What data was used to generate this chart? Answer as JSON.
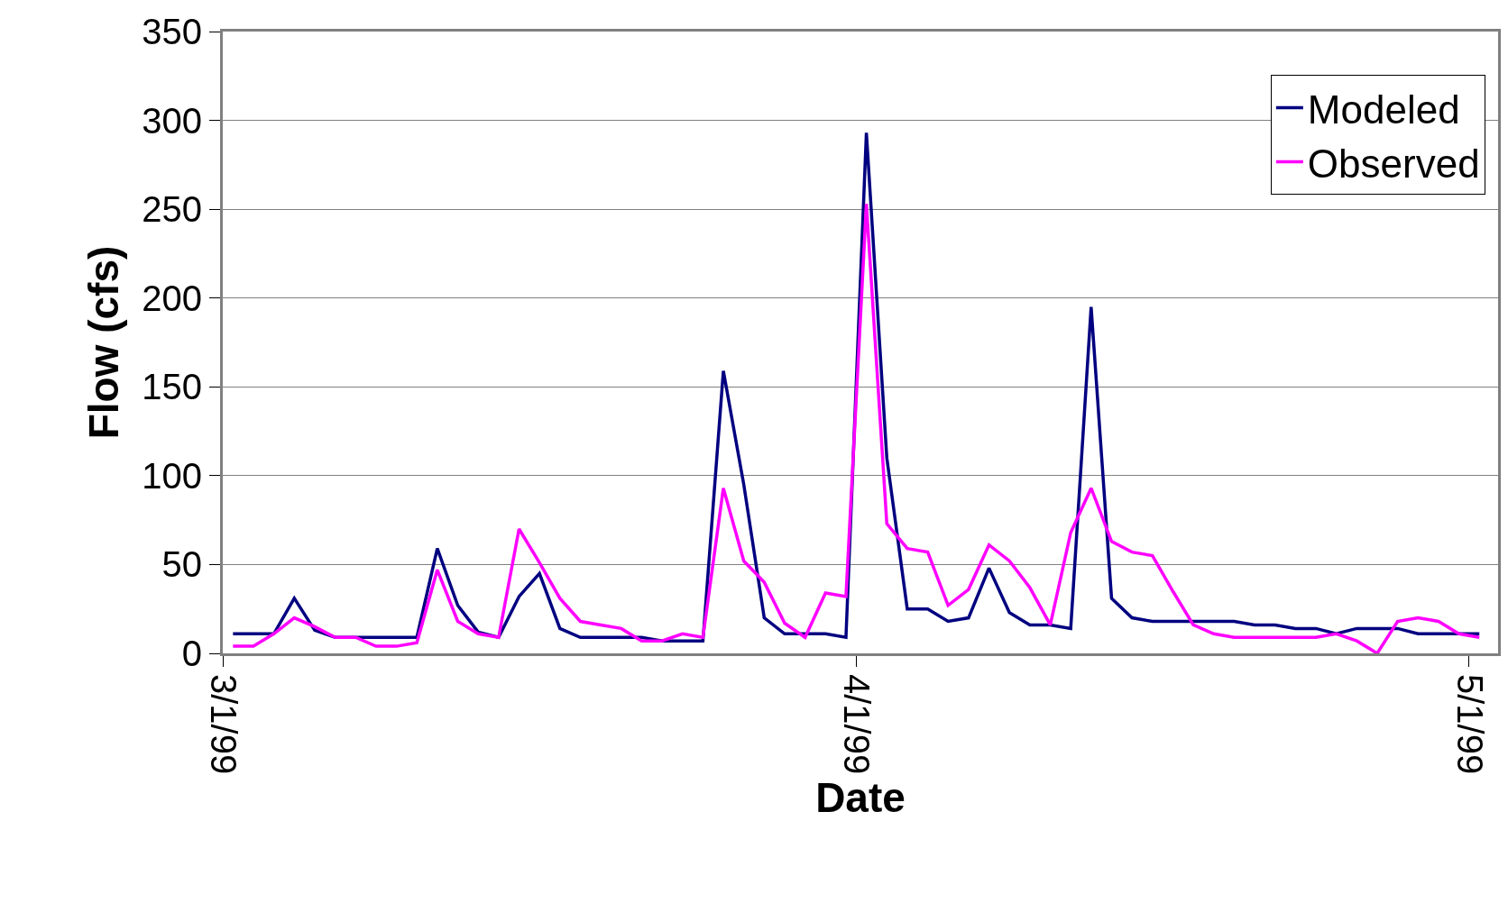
{
  "chart_data": {
    "type": "line",
    "xlabel": "Date",
    "ylabel": "Flow (cfs)",
    "x": [
      "1999-03-01T12:00",
      "1999-03-02T12:00",
      "1999-03-03T12:00",
      "1999-03-04T12:00",
      "1999-03-05T12:00",
      "1999-03-06T12:00",
      "1999-03-07T12:00",
      "1999-03-08T12:00",
      "1999-03-09T12:00",
      "1999-03-10T12:00",
      "1999-03-11T12:00",
      "1999-03-12T12:00",
      "1999-03-13T12:00",
      "1999-03-14T12:00",
      "1999-03-15T12:00",
      "1999-03-16T12:00",
      "1999-03-17T12:00",
      "1999-03-18T12:00",
      "1999-03-19T12:00",
      "1999-03-20T12:00",
      "1999-03-21T12:00",
      "1999-03-22T12:00",
      "1999-03-23T12:00",
      "1999-03-24T12:00",
      "1999-03-25T12:00",
      "1999-03-26T12:00",
      "1999-03-27T12:00",
      "1999-03-28T12:00",
      "1999-03-29T12:00",
      "1999-03-30T12:00",
      "1999-03-31T12:00",
      "1999-04-01T12:00",
      "1999-04-02T12:00",
      "1999-04-03T12:00",
      "1999-04-04T12:00",
      "1999-04-05T12:00",
      "1999-04-06T12:00",
      "1999-04-07T12:00",
      "1999-04-08T12:00",
      "1999-04-09T12:00",
      "1999-04-10T12:00",
      "1999-04-11T12:00",
      "1999-04-12T12:00",
      "1999-04-13T12:00",
      "1999-04-14T12:00",
      "1999-04-15T12:00",
      "1999-04-16T12:00",
      "1999-04-17T12:00",
      "1999-04-18T12:00",
      "1999-04-19T12:00",
      "1999-04-20T12:00",
      "1999-04-21T12:00",
      "1999-04-22T12:00",
      "1999-04-23T12:00",
      "1999-04-24T12:00",
      "1999-04-25T12:00",
      "1999-04-26T12:00",
      "1999-04-27T12:00",
      "1999-04-28T12:00",
      "1999-04-29T12:00",
      "1999-04-30T12:00",
      "1999-05-01T12:00"
    ],
    "series": [
      {
        "name": "Modeled",
        "color": "#000080",
        "values": [
          11,
          11,
          11,
          31,
          13,
          9,
          9,
          9,
          9,
          9,
          59,
          27,
          12,
          9,
          32,
          45,
          14,
          9,
          9,
          9,
          9,
          7,
          7,
          7,
          159,
          95,
          20,
          11,
          11,
          11,
          9,
          293,
          110,
          25,
          25,
          18,
          20,
          48,
          23,
          16,
          16,
          14,
          195,
          31,
          20,
          18,
          18,
          18,
          18,
          18,
          16,
          16,
          14,
          14,
          11,
          14,
          14,
          14,
          11,
          11,
          11,
          11
        ]
      },
      {
        "name": "Observed",
        "color": "#ff00ff",
        "values": [
          4,
          4,
          11,
          20,
          15,
          9,
          9,
          4,
          4,
          6,
          47,
          18,
          11,
          9,
          70,
          51,
          31,
          18,
          16,
          14,
          7,
          7,
          11,
          9,
          93,
          52,
          40,
          17,
          9,
          34,
          32,
          253,
          73,
          59,
          57,
          27,
          36,
          61,
          52,
          37,
          16,
          68,
          93,
          63,
          57,
          55,
          35,
          16,
          11,
          9,
          9,
          9,
          9,
          9,
          11,
          7,
          0,
          18,
          20,
          18,
          11,
          9
        ]
      }
    ],
    "xlim": [
      "1999-03-01",
      "1999-05-02T10:00"
    ],
    "xticks": [
      {
        "value": "1999-03-01",
        "label": "3/1/99"
      },
      {
        "value": "1999-04-01",
        "label": "4/1/99"
      },
      {
        "value": "1999-05-01",
        "label": "5/1/99"
      }
    ],
    "ylim": [
      0,
      350
    ],
    "yticks": [
      0,
      50,
      100,
      150,
      200,
      250,
      300,
      350
    ],
    "grid": "y",
    "legend": "top right",
    "marker": "none",
    "line_style": "solid"
  }
}
